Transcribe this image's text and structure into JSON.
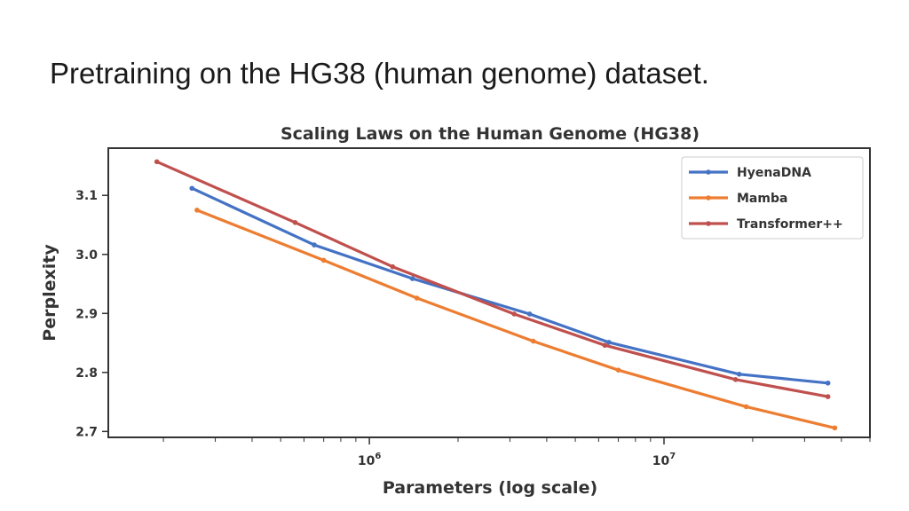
{
  "slide": {
    "title": "Pretraining on the HG38 (human genome) dataset."
  },
  "chart_data": {
    "type": "line",
    "title": "Scaling Laws on the Human Genome (HG38)",
    "xlabel": "Parameters (log scale)",
    "ylabel": "Perplexity",
    "xscale": "log",
    "xlim": [
      130000,
      50000000
    ],
    "ylim": [
      2.69,
      3.18
    ],
    "yticks": [
      2.7,
      2.8,
      2.9,
      3.0,
      3.1
    ],
    "ytick_labels": [
      "2.7",
      "2.8",
      "2.9",
      "3.0",
      "3.1"
    ],
    "xtick_labels": [
      {
        "value": 1000000,
        "base": "10",
        "exp": "6"
      },
      {
        "value": 10000000,
        "base": "10",
        "exp": "7"
      }
    ],
    "grid": false,
    "legend_position": "top-right",
    "series": [
      {
        "name": "HyenaDNA",
        "color": "#4472c4",
        "x": [
          250000,
          650000,
          1400000,
          3500000,
          6500000,
          18000000,
          36000000
        ],
        "y": [
          3.112,
          3.016,
          2.959,
          2.899,
          2.851,
          2.797,
          2.782
        ]
      },
      {
        "name": "Mamba",
        "color": "#ed7d31",
        "x": [
          260000,
          700000,
          1450000,
          3600000,
          7000000,
          19000000,
          38000000
        ],
        "y": [
          3.075,
          2.99,
          2.926,
          2.853,
          2.804,
          2.742,
          2.706
        ]
      },
      {
        "name": "Transformer++",
        "color": "#c0504d",
        "x": [
          190000,
          560000,
          1200000,
          3100000,
          6300000,
          17500000,
          36000000
        ],
        "y": [
          3.157,
          3.054,
          2.979,
          2.899,
          2.846,
          2.788,
          2.759
        ]
      }
    ]
  }
}
